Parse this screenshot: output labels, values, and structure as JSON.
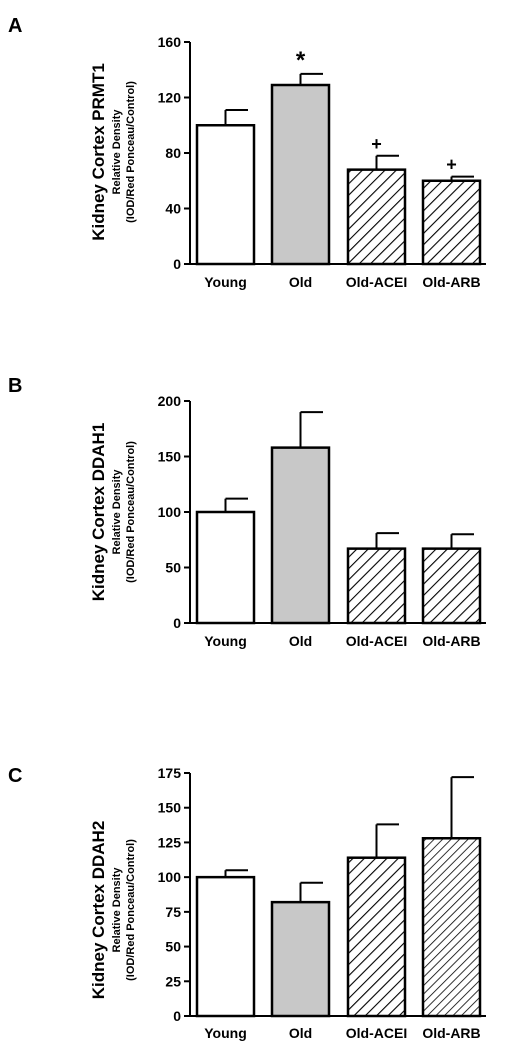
{
  "colors": {
    "young": "#ffffff",
    "old": "#c8c8c8",
    "hatch": "#ffffff",
    "stroke": "#000000"
  },
  "chart_data": [
    {
      "type": "bar",
      "panel": "A",
      "categories": [
        "Young",
        "Old",
        "Old-ACEI",
        "Old-ARB"
      ],
      "values": [
        100,
        129,
        68,
        60
      ],
      "errors": [
        11,
        8,
        10,
        3
      ],
      "fills": [
        "white",
        "gray",
        "hatch",
        "hatch"
      ],
      "annotations": [
        "",
        "*",
        "+",
        "+"
      ],
      "ylabel": "Kidney Cortex PRMT1",
      "ylabel_sub1": "Relative Density",
      "ylabel_sub2": "(IOD/Red Ponceau/Control)",
      "ylim": [
        0,
        160
      ],
      "yticks": [
        0,
        40,
        80,
        120,
        160
      ]
    },
    {
      "type": "bar",
      "panel": "B",
      "categories": [
        "Young",
        "Old",
        "Old-ACEI",
        "Old-ARB"
      ],
      "values": [
        100,
        158,
        67,
        67
      ],
      "errors": [
        12,
        32,
        14,
        13
      ],
      "fills": [
        "white",
        "gray",
        "hatch",
        "hatch"
      ],
      "annotations": [
        "",
        "",
        "",
        ""
      ],
      "ylabel": "Kidney Cortex DDAH1",
      "ylabel_sub1": "Relative Density",
      "ylabel_sub2": "(IOD/Red Ponceau/Control)",
      "ylim": [
        0,
        200
      ],
      "yticks": [
        0,
        50,
        100,
        150,
        200
      ]
    },
    {
      "type": "bar",
      "panel": "C",
      "categories": [
        "Young",
        "Old",
        "Old-ACEI",
        "Old-ARB"
      ],
      "values": [
        100,
        82,
        114,
        128
      ],
      "errors": [
        5,
        14,
        24,
        44
      ],
      "fills": [
        "white",
        "gray",
        "hatch",
        "hatch2"
      ],
      "annotations": [
        "",
        "",
        "",
        ""
      ],
      "ylabel": "Kidney Cortex  DDAH2",
      "ylabel_sub1": "Relative Density",
      "ylabel_sub2": "(IOD/Red Ponceau/Control)",
      "ylim": [
        0,
        175
      ],
      "yticks": [
        0,
        25,
        50,
        75,
        100,
        125,
        150,
        175
      ]
    }
  ]
}
